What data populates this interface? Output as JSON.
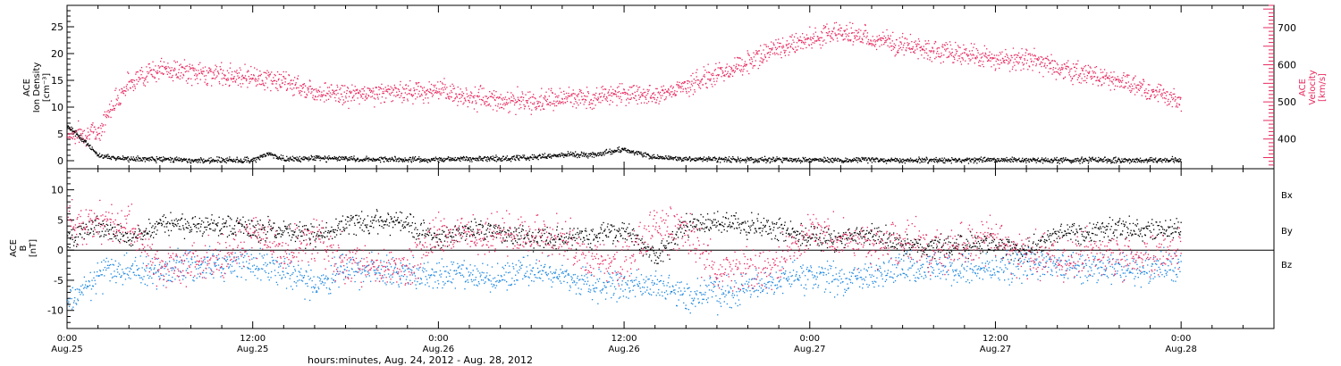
{
  "colors": {
    "black": "#000000",
    "pink": "#e8285f",
    "blue": "#1a86e0"
  },
  "chart_data": [
    {
      "type": "scatter",
      "panel": "top",
      "ylabel_left": [
        "ACE",
        "Ion Density",
        "[cm⁻³]"
      ],
      "ylabel_right": [
        "ACE",
        "Velocity",
        "[km/s]"
      ],
      "ylim_left": [
        -1.5,
        29
      ],
      "yticks_left": [
        0,
        5,
        10,
        15,
        20,
        25
      ],
      "ylim_right": [
        320,
        760
      ],
      "yticks_right": [
        400,
        500,
        600,
        700
      ],
      "x_units": "hours since 0:00 Aug.25",
      "series": [
        {
          "name": "",
          "axis": "left",
          "color": "#000000",
          "x": [
            0,
            1,
            2,
            3,
            4,
            6,
            8,
            10,
            12,
            13,
            14,
            16,
            18,
            20,
            22,
            24,
            26,
            28,
            30,
            32,
            34,
            36,
            38,
            40,
            42,
            44,
            46,
            48,
            50,
            52,
            54,
            56,
            58,
            60,
            62,
            64,
            66,
            68,
            70,
            72
          ],
          "y": [
            6.5,
            4,
            1,
            0.6,
            0.4,
            0.4,
            0.2,
            0.2,
            0.2,
            1.4,
            0.4,
            0.6,
            0.5,
            0.3,
            0.3,
            0.3,
            0.4,
            0.5,
            0.7,
            1.2,
            1.2,
            2.2,
            0.7,
            0.4,
            0.3,
            0.3,
            0.3,
            0.3,
            0.2,
            0.2,
            0.2,
            0.2,
            0.2,
            0.2,
            0.2,
            0.2,
            0.2,
            0.2,
            0.2,
            0.2
          ]
        },
        {
          "name": "",
          "axis": "right",
          "color": "#e8285f",
          "x": [
            0,
            1,
            2,
            3,
            4,
            5,
            6,
            8,
            10,
            12,
            14,
            16,
            18,
            20,
            22,
            24,
            26,
            28,
            30,
            32,
            34,
            36,
            38,
            40,
            42,
            44,
            46,
            48,
            50,
            52,
            54,
            56,
            58,
            60,
            62,
            64,
            66,
            68,
            70,
            72
          ],
          "y": [
            415,
            415,
            420,
            500,
            555,
            575,
            590,
            580,
            575,
            570,
            555,
            530,
            520,
            525,
            530,
            530,
            515,
            505,
            500,
            510,
            515,
            525,
            520,
            545,
            575,
            610,
            650,
            670,
            690,
            670,
            655,
            640,
            630,
            610,
            620,
            590,
            575,
            560,
            530,
            500
          ]
        }
      ]
    },
    {
      "type": "scatter",
      "panel": "bottom",
      "ylabel_left": [
        "ACE",
        "B",
        "[nT]"
      ],
      "ylim": [
        -13,
        13.5
      ],
      "yticks": [
        -10,
        -5,
        0,
        5,
        10
      ],
      "x_units": "hours since 0:00 Aug.25",
      "legend_position": "right",
      "series": [
        {
          "name": "Bx",
          "color": "#000000",
          "x": [
            0,
            2,
            4,
            6,
            8,
            10,
            12,
            14,
            16,
            18,
            20,
            22,
            24,
            26,
            28,
            30,
            32,
            34,
            36,
            38,
            40,
            42,
            44,
            46,
            48,
            50,
            52,
            54,
            56,
            58,
            60,
            62,
            64,
            66,
            68,
            70,
            72
          ],
          "y": [
            2,
            4,
            2,
            4.5,
            4,
            4,
            3.5,
            3.5,
            2.5,
            4.5,
            5,
            4,
            2,
            3.5,
            3,
            2,
            2,
            2.5,
            3.5,
            -1,
            4,
            5,
            4,
            4,
            2,
            2,
            3,
            1,
            0.5,
            1,
            1,
            0,
            3,
            3,
            3.5,
            3.5,
            3.5
          ]
        },
        {
          "name": "By",
          "color": "#1a86e0",
          "x": [
            0,
            2,
            4,
            6,
            8,
            10,
            12,
            14,
            16,
            18,
            20,
            22,
            24,
            26,
            28,
            30,
            32,
            34,
            36,
            38,
            40,
            42,
            44,
            46,
            48,
            50,
            52,
            54,
            56,
            58,
            60,
            62,
            64,
            66,
            68,
            70,
            72
          ],
          "y": [
            -9,
            -4,
            -3,
            -3.5,
            -2,
            -2.5,
            -2,
            -3,
            -6,
            -3,
            -3,
            -4,
            -4,
            -4,
            -4.5,
            -3,
            -4,
            -6,
            -6,
            -6,
            -8,
            -7,
            -6,
            -5,
            -4,
            -5,
            -4,
            -3,
            -3,
            -3,
            -3,
            -2,
            -2.5,
            -3,
            -3,
            -3,
            -3
          ]
        },
        {
          "name": "Bz",
          "color": "#e8285f",
          "x": [
            0,
            2,
            4,
            6,
            8,
            10,
            12,
            14,
            16,
            18,
            20,
            22,
            24,
            26,
            28,
            30,
            32,
            34,
            36,
            38,
            40,
            42,
            44,
            46,
            48,
            50,
            52,
            54,
            56,
            58,
            60,
            62,
            64,
            66,
            68,
            70,
            72
          ],
          "y": [
            4,
            5,
            4,
            -3,
            -2,
            -2,
            3,
            -1,
            2,
            -2,
            -3,
            -3,
            3,
            2,
            3,
            2,
            2,
            -2,
            -2,
            4,
            3,
            -4,
            -3,
            -2,
            3,
            2,
            1,
            2,
            0,
            1,
            2,
            -1,
            -1,
            -0.5,
            -1,
            -1,
            0
          ]
        }
      ]
    }
  ],
  "axis": {
    "xlim": [
      0,
      78
    ],
    "ticks": [
      {
        "x": 0,
        "time": "0:00",
        "date": "Aug.25"
      },
      {
        "x": 12,
        "time": "12:00",
        "date": "Aug.25"
      },
      {
        "x": 24,
        "time": "0:00",
        "date": "Aug.26"
      },
      {
        "x": 36,
        "time": "12:00",
        "date": "Aug.26"
      },
      {
        "x": 48,
        "time": "0:00",
        "date": "Aug.27"
      },
      {
        "x": 60,
        "time": "12:00",
        "date": "Aug.27"
      },
      {
        "x": 72,
        "time": "0:00",
        "date": "Aug.28"
      }
    ],
    "xlabel": "hours:minutes, Aug. 24, 2012 - Aug. 28, 2012"
  }
}
